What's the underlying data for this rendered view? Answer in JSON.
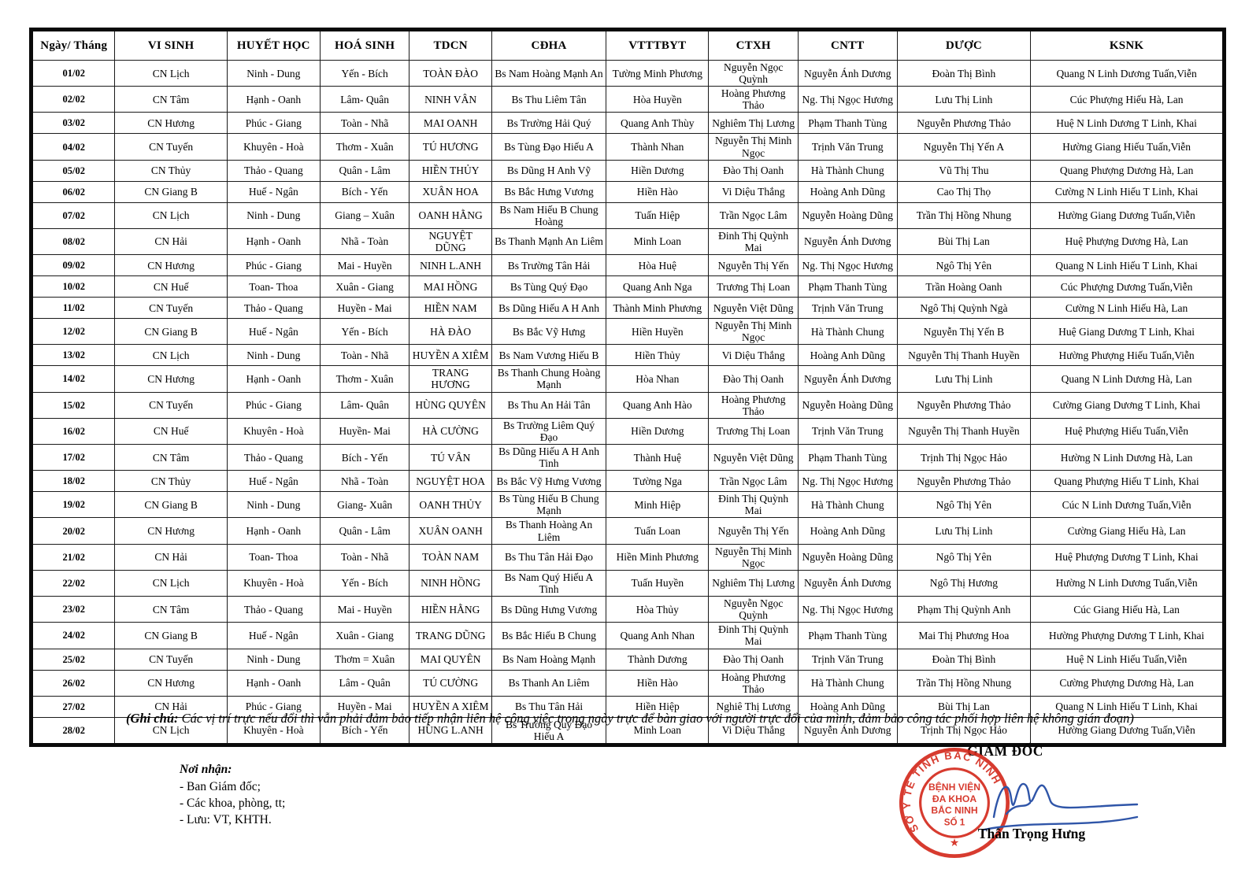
{
  "doc": {
    "headers": [
      "Ngày/ Tháng",
      "VI SINH",
      "HUYẾT HỌC",
      "HOÁ SINH",
      "TDCN",
      "CĐHA",
      "VTTTBYT",
      "CTXH",
      "CNTT",
      "DƯỢC",
      "KSNK"
    ],
    "rows": [
      [
        "01/02",
        "CN Lịch",
        "Ninh - Dung",
        "Yến - Bích",
        "TOÀN ĐÀO",
        "Bs Nam Hoàng Mạnh An",
        "Tường Minh Phương",
        "Nguyễn Ngọc Quỳnh",
        "Nguyễn Ánh Dương",
        "Đoàn Thị Bình",
        "Quang N Linh Dương Tuấn,Viễn"
      ],
      [
        "02/02",
        "CN Tâm",
        "Hạnh - Oanh",
        "Lâm- Quân",
        "NINH VÂN",
        "Bs Thu Liêm Tân",
        "Hòa Huyền",
        "Hoàng Phương Thảo",
        "Ng. Thị Ngọc Hương",
        "Lưu Thị Linh",
        "Cúc Phượng Hiếu Hà, Lan"
      ],
      [
        "03/02",
        "CN Hương",
        "Phúc - Giang",
        "Toàn - Nhã",
        "MAI OANH",
        "Bs Trường Hải Quý",
        "Quang Anh Thùy",
        "Nghiêm Thị Lương",
        "Phạm Thanh Tùng",
        "Nguyễn Phương Thảo",
        "Huệ N Linh Dương T Linh, Khai"
      ],
      [
        "04/02",
        "CN Tuyến",
        "Khuyên - Hoà",
        "Thơm - Xuân",
        "TÚ HƯƠNG",
        "Bs Tùng Đạo Hiếu A",
        "Thành Nhan",
        "Nguyễn Thị Minh Ngọc",
        "Trịnh Văn Trung",
        "Nguyễn Thị Yến A",
        "Hường Giang Hiếu Tuấn,Viễn"
      ],
      [
        "05/02",
        "CN Thủy",
        "Thảo - Quang",
        "Quân - Lâm",
        "HIỀN THỦY",
        "Bs Dũng H Anh Vỹ",
        "Hiền Dương",
        "Đào Thị Oanh",
        "Hà Thành Chung",
        "Vũ Thị Thu",
        "Quang Phượng Dương Hà, Lan"
      ],
      [
        "06/02",
        "CN Giang B",
        "Huế - Ngân",
        "Bích - Yến",
        "XUÂN HOA",
        "Bs Bắc Hưng Vương",
        "Hiền Hào",
        "Vi Diệu Thắng",
        "Hoàng Anh Dũng",
        "Cao Thị Thọ",
        "Cường N Linh Hiếu T Linh, Khai"
      ],
      [
        "07/02",
        "CN Lịch",
        "Ninh - Dung",
        "Giang – Xuân",
        "OANH HẰNG",
        "Bs Nam Hiếu B Chung Hoàng",
        "Tuấn Hiệp",
        "Trần Ngọc Lâm",
        "Nguyễn Hoàng Dũng",
        "Trần Thị Hồng Nhung",
        "Hường Giang Dương Tuấn,Viễn"
      ],
      [
        "08/02",
        "CN Hải",
        "Hạnh - Oanh",
        "Nhã - Toàn",
        "NGUYỆT DŨNG",
        "Bs Thanh Mạnh An Liêm",
        "Minh Loan",
        "Đinh Thị Quỳnh Mai",
        "Nguyễn Ánh Dương",
        "Bùi Thị Lan",
        "Huệ Phượng Dương Hà, Lan"
      ],
      [
        "09/02",
        "CN Hương",
        "Phúc - Giang",
        "Mai - Huyền",
        "NINH L.ANH",
        "Bs Trường Tân Hải",
        "Hòa Huệ",
        "Nguyễn Thị Yến",
        "Ng. Thị Ngọc Hương",
        "Ngô Thị Yên",
        "Quang N Linh Hiếu T Linh, Khai"
      ],
      [
        "10/02",
        "CN Huế",
        "Toan- Thoa",
        "Xuân - Giang",
        "MAI HỒNG",
        "Bs Tùng Quý Đạo",
        "Quang Anh Nga",
        "Trương Thị Loan",
        "Phạm Thanh Tùng",
        "Trần Hoàng Oanh",
        "Cúc Phượng Dương Tuấn,Viễn"
      ],
      [
        "11/02",
        "CN Tuyến",
        "Thảo - Quang",
        "Huyền - Mai",
        "HIỀN NAM",
        "Bs Dũng Hiếu A H Anh",
        "Thành Minh Phương",
        "Nguyễn Việt Dũng",
        "Trịnh Văn Trung",
        "Ngô Thị Quỳnh Ngà",
        "Cường N Linh Hiếu Hà, Lan"
      ],
      [
        "12/02",
        "CN Giang B",
        "Huế - Ngân",
        "Yến - Bích",
        "HÀ ĐÀO",
        "Bs Bắc Vỹ Hưng",
        "Hiền Huyền",
        "Nguyễn Thị Minh Ngọc",
        "Hà Thành Chung",
        "Nguyễn Thị Yến B",
        "Huệ Giang Dương T Linh, Khai"
      ],
      [
        "13/02",
        "CN Lịch",
        "Ninh - Dung",
        "Toàn - Nhã",
        "HUYỀN A XIÊM",
        "Bs Nam Vương Hiếu B",
        "Hiền Thủy",
        "Vi Diệu Thắng",
        "Hoàng Anh Dũng",
        "Nguyễn Thị Thanh Huyền",
        "Hường Phượng Hiếu Tuấn,Viễn"
      ],
      [
        "14/02",
        "CN Hương",
        "Hạnh - Oanh",
        "Thơm - Xuân",
        "TRANG HƯƠNG",
        "Bs Thanh Chung Hoàng Mạnh",
        "Hòa Nhan",
        "Đào Thị Oanh",
        "Nguyễn Ánh Dương",
        "Lưu Thị Linh",
        "Quang N Linh Dương Hà, Lan"
      ],
      [
        "15/02",
        "CN Tuyến",
        "Phúc - Giang",
        "Lâm- Quân",
        "HÙNG QUYÊN",
        "Bs Thu An Hải Tân",
        "Quang Anh Hào",
        "Hoàng Phương Thảo",
        "Nguyễn Hoàng Dũng",
        "Nguyễn Phương Thảo",
        "Cường Giang Dương T Linh, Khai"
      ],
      [
        "16/02",
        "CN Huế",
        "Khuyên - Hoà",
        "Huyền- Mai",
        "HÀ CƯỜNG",
        "Bs Trường Liêm Quý Đạo",
        "Hiền Dương",
        "Trương Thị Loan",
        "Trịnh Văn Trung",
        "Nguyễn Thị Thanh Huyền",
        "Huệ Phượng Hiếu Tuấn,Viễn"
      ],
      [
        "17/02",
        "CN Tâm",
        "Thảo - Quang",
        "Bích - Yến",
        "TÚ VÂN",
        "Bs Dũng Hiếu A H Anh Tinh",
        "Thành Huệ",
        "Nguyễn Việt Dũng",
        "Phạm Thanh Tùng",
        "Trịnh Thị Ngọc Hảo",
        "Hường N Linh Dương Hà, Lan"
      ],
      [
        "18/02",
        "CN Thủy",
        "Huế - Ngân",
        "Nhã - Toàn",
        "NGUYỆT HOA",
        "Bs Bắc Vỹ Hưng Vương",
        "Tường Nga",
        "Trần Ngọc Lâm",
        "Ng. Thị Ngọc Hương",
        "Nguyễn Phương Thảo",
        "Quang Phượng Hiếu T Linh, Khai"
      ],
      [
        "19/02",
        "CN Giang B",
        "Ninh - Dung",
        "Giang- Xuân",
        "OANH THỦY",
        "Bs Tùng Hiếu B Chung Mạnh",
        "Minh Hiệp",
        "Đinh Thị Quỳnh Mai",
        "Hà Thành Chung",
        "Ngô Thị Yên",
        "Cúc N Linh Dương Tuấn,Viễn"
      ],
      [
        "20/02",
        "CN Hương",
        "Hạnh - Oanh",
        "Quân - Lâm",
        "XUÂN OANH",
        "Bs Thanh Hoàng An Liêm",
        "Tuấn Loan",
        "Nguyễn Thị Yến",
        "Hoàng Anh Dũng",
        "Lưu Thị Linh",
        "Cường Giang Hiếu Hà, Lan"
      ],
      [
        "21/02",
        "CN Hải",
        "Toan- Thoa",
        "Toàn - Nhã",
        "TOÀN NAM",
        "Bs Thu Tân Hải Đạo",
        "Hiền Minh Phương",
        "Nguyễn Thị Minh Ngọc",
        "Nguyễn Hoàng Dũng",
        "Ngô Thị Yên",
        "Huệ Phượng Dương T Linh, Khai"
      ],
      [
        "22/02",
        "CN Lịch",
        "Khuyên - Hoà",
        "Yến - Bích",
        "NINH HỒNG",
        "Bs Nam Quý Hiếu A Tinh",
        "Tuấn Huyền",
        "Nghiêm Thị Lương",
        "Nguyễn Ánh Dương",
        "Ngô Thị Hương",
        "Hường N Linh Dương Tuấn,Viễn"
      ],
      [
        "23/02",
        "CN Tâm",
        "Thảo - Quang",
        "Mai - Huyền",
        "HIỀN HẰNG",
        "Bs Dũng Hưng Vương",
        "Hòa Thủy",
        "Nguyễn Ngọc Quỳnh",
        "Ng. Thị Ngọc Hương",
        "Phạm Thị Quỳnh Anh",
        "Cúc Giang Hiếu Hà, Lan"
      ],
      [
        "24/02",
        "CN Giang B",
        "Huế - Ngân",
        "Xuân - Giang",
        "TRANG DŨNG",
        "Bs Bắc Hiếu B Chung",
        "Quang Anh Nhan",
        "Đinh Thị Quỳnh Mai",
        "Phạm Thanh Tùng",
        "Mai Thị Phương Hoa",
        "Hường Phượng Dương T Linh, Khai"
      ],
      [
        "25/02",
        "CN Tuyến",
        "Ninh - Dung",
        "Thơm = Xuân",
        "MAI QUYÊN",
        "Bs Nam Hoàng Mạnh",
        "Thành Dương",
        "Đào Thị Oanh",
        "Trịnh Văn Trung",
        "Đoàn Thị Bình",
        "Huệ N Linh Hiếu Tuấn,Viễn"
      ],
      [
        "26/02",
        "CN Hương",
        "Hạnh - Oanh",
        "Lâm - Quân",
        "TÚ CƯỜNG",
        "Bs Thanh An Liêm",
        "Hiền Hào",
        "Hoàng Phương Thảo",
        "Hà Thành Chung",
        "Trần Thị Hồng Nhung",
        "Cường Phượng Dương Hà, Lan"
      ],
      [
        "27/02",
        "CN Hải",
        "Phúc - Giang",
        "Huyền - Mai",
        "HUYỀN A XIÊM",
        "Bs Thu Tân Hải",
        "Hiền Hiệp",
        "Nghiê Thị Lương",
        "Hoàng Anh Dũng",
        "Bùi Thị Lan",
        "Quang N Linh Hiếu T Linh, Khai"
      ],
      [
        "28/02",
        "CN Lịch",
        "Khuyên - Hoà",
        "Bích - Yến",
        "HÙNG L.ANH",
        "Bs Trường Quý Đạo Hiếu A",
        "Minh Loan",
        "Vi Diệu Thắng",
        "Nguyễn Ánh Dương",
        "Trịnh Thị Ngọc Hảo",
        "Hường Giang Dương Tuấn,Viễn"
      ]
    ]
  },
  "note": {
    "prefix": "(Ghi chú: ",
    "body": "Các vị trí trực nếu đổi thì vẫn phải đảm bảo tiếp nhận liên hệ công việc trong ngày trực để bàn giao với người trực đổi của mình, đảm bảo công tác phối hợp liên hệ không gián đoạn)"
  },
  "recipients": {
    "title": "Nơi nhận:",
    "items": [
      "- Ban Giám đốc;",
      "- Các khoa, phòng, tt;",
      "- Lưu: VT, KHTH."
    ]
  },
  "sign": {
    "title": "GIÁM ĐỐC",
    "name": "Thân Trọng Hưng"
  },
  "stamp": {
    "ring_text": "SỞ Y TẾ TỈNH BẮC NINH",
    "line1": "BỆNH VIỆN",
    "line2": "ĐA KHOA",
    "line3": "BẮC NINH",
    "line4": "SỐ 1",
    "star": "★"
  },
  "colors": {
    "stamp_red": "#d42b1e",
    "signature_blue": "#2f55a8"
  }
}
